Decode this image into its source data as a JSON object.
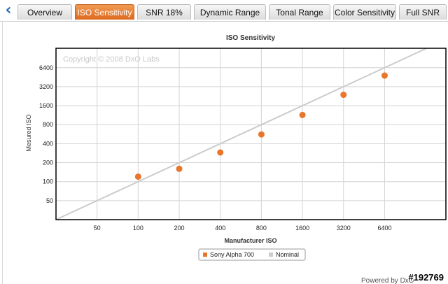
{
  "tabs": [
    {
      "label": "Overview",
      "active": false
    },
    {
      "label": "ISO Sensitivity",
      "active": true
    },
    {
      "label": "SNR 18%",
      "active": false
    },
    {
      "label": "Dynamic Range",
      "active": false
    },
    {
      "label": "Tonal Range",
      "active": false
    },
    {
      "label": "Color Sensitivity",
      "active": false
    },
    {
      "label": "Full SNR",
      "active": false
    }
  ],
  "back_icon": "chevron-left-icon",
  "chart_data": {
    "type": "scatter",
    "title": "ISO Sensitivity",
    "xlabel": "Manufacturer ISO",
    "ylabel": "Mesured ISO",
    "x_scale": "log2",
    "y_scale": "log2",
    "x_ticks": [
      "50",
      "100",
      "200",
      "400",
      "800",
      "1600",
      "3200",
      "6400"
    ],
    "y_ticks": [
      "50",
      "100",
      "200",
      "400",
      "800",
      "1600",
      "3200",
      "6400"
    ],
    "xlim": [
      25,
      18000
    ],
    "ylim": [
      25,
      13000
    ],
    "grid": true,
    "copyright": "Copyright © 2008 DxO Labs",
    "series": [
      {
        "name": "Sony Alpha 700",
        "color": "#e8762b",
        "x": [
          100,
          200,
          400,
          800,
          1600,
          3200,
          6400
        ],
        "y": [
          120,
          160,
          290,
          560,
          1140,
          2380,
          4800
        ]
      }
    ],
    "reference": {
      "name": "Nominal",
      "color": "#cccccc"
    },
    "legend_position": "bottom-center"
  },
  "footer": {
    "powered_by": "Powered by DxO",
    "image_tag": "#192769"
  }
}
